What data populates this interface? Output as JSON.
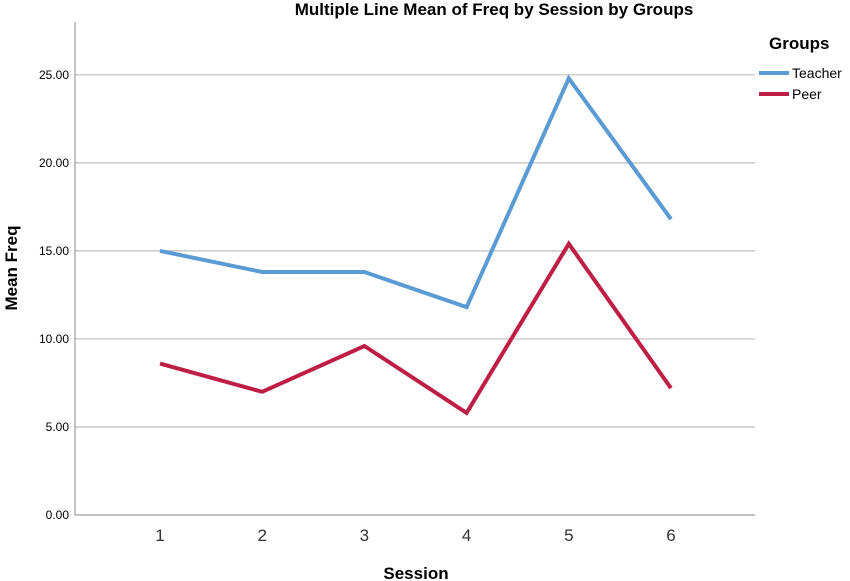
{
  "chart_data": {
    "type": "line",
    "title": "Multiple Line Mean of Freq by Session by Groups",
    "xlabel": "Session",
    "ylabel": "Mean Freq",
    "categories": [
      "1",
      "2",
      "3",
      "4",
      "5",
      "6"
    ],
    "ylim": [
      0,
      28
    ],
    "yticks": [
      "0.00",
      "5.00",
      "10.00",
      "15.00",
      "20.00",
      "25.00"
    ],
    "grid": "horizontal",
    "legend": {
      "title": "Groups",
      "position": "top-right"
    },
    "series": [
      {
        "name": "Teacher",
        "color": "#5b9bd5",
        "values": [
          15.0,
          13.8,
          13.8,
          11.8,
          24.8,
          16.8
        ]
      },
      {
        "name": "Peer",
        "color": "#be1e45",
        "values": [
          8.6,
          7.0,
          9.6,
          5.8,
          15.4,
          7.2
        ]
      }
    ]
  }
}
